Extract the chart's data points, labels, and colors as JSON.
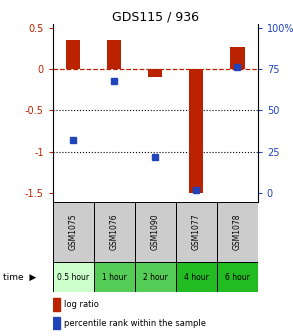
{
  "title": "GDS115 / 936",
  "categories": [
    "GSM1075",
    "GSM1076",
    "GSM1090",
    "GSM1077",
    "GSM1078"
  ],
  "time_labels": [
    "0.5 hour",
    "1 hour",
    "2 hour",
    "4 hour",
    "6 hour"
  ],
  "log_ratio": [
    0.35,
    0.35,
    -0.1,
    -1.5,
    0.27
  ],
  "percentile_rank": [
    32,
    68,
    22,
    2,
    76
  ],
  "bar_color": "#bb2200",
  "dot_color": "#2244bb",
  "ylim": [
    -1.6,
    0.55
  ],
  "left_yticks": [
    0.5,
    0.0,
    -0.5,
    -1.0,
    -1.5
  ],
  "left_ytick_labels": [
    "0.5",
    "0",
    "-0.5",
    "-1",
    "-1.5"
  ],
  "right_ytick_vals": [
    0.5,
    0.0,
    -0.5,
    -1.0,
    -1.5
  ],
  "right_ytick_labels": [
    "100%",
    "75",
    "50",
    "25",
    "0"
  ],
  "right_ytick_color": "#2244bb",
  "left_ytick_color": "#bb2200",
  "hline_color": "#bb2200",
  "dotted_lines": [
    -0.5,
    -1.0
  ],
  "bar_width": 0.35,
  "legend_log": "log ratio",
  "legend_pct": "percentile rank within the sample",
  "cell_bg": "#cccccc",
  "time_bg_colors": [
    "#ccffcc",
    "#55cc55",
    "#55cc55",
    "#22bb22",
    "#22bb22"
  ]
}
